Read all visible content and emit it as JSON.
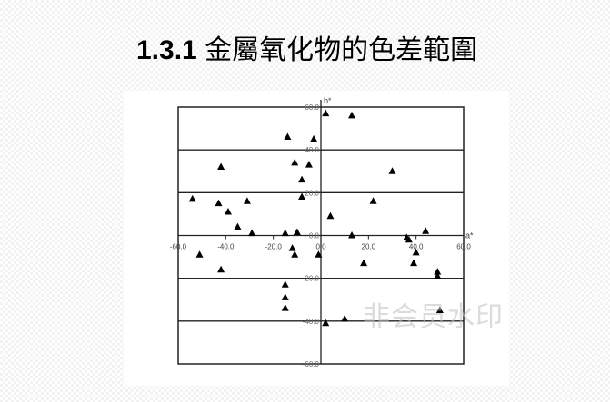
{
  "title": {
    "number": "1.3.1",
    "text": "金屬氧化物的色差範圍"
  },
  "watermark": "非会员水印",
  "chart_data": {
    "type": "scatter",
    "title": "",
    "xlabel": "a*",
    "ylabel": "b*",
    "xlim": [
      -60,
      60
    ],
    "ylim": [
      -60,
      60
    ],
    "x_ticks": [
      "-60.0",
      "-40.0",
      "-20.0",
      "0.0",
      "20.0",
      "40.0",
      "60.0"
    ],
    "y_ticks": [
      "60.0",
      "40.0",
      "20.0",
      "0.0",
      "-20.0",
      "-40.0",
      "-60.0"
    ],
    "grid": "horizontal",
    "marker": "triangle",
    "marker_color": "#000000",
    "points": [
      [
        2,
        57
      ],
      [
        13,
        56
      ],
      [
        -14,
        46
      ],
      [
        -3,
        45
      ],
      [
        -42,
        32
      ],
      [
        -11,
        34
      ],
      [
        -5,
        33
      ],
      [
        30,
        30
      ],
      [
        -8,
        26
      ],
      [
        -54,
        17
      ],
      [
        -43,
        15
      ],
      [
        -31,
        16
      ],
      [
        -8,
        18
      ],
      [
        22,
        16
      ],
      [
        -39,
        11
      ],
      [
        4,
        9
      ],
      [
        -35,
        4
      ],
      [
        -29,
        1
      ],
      [
        -15,
        1
      ],
      [
        -10,
        1.5
      ],
      [
        13,
        0
      ],
      [
        36,
        -1
      ],
      [
        37,
        -2
      ],
      [
        44,
        2
      ],
      [
        -51,
        -9
      ],
      [
        -12,
        -6
      ],
      [
        -11,
        -9
      ],
      [
        -1,
        -9
      ],
      [
        40,
        -8
      ],
      [
        18,
        -13
      ],
      [
        39,
        -13
      ],
      [
        -42,
        -16
      ],
      [
        49,
        -17
      ],
      [
        49,
        -19
      ],
      [
        -15,
        -23
      ],
      [
        -15,
        -29
      ],
      [
        -15,
        -34
      ],
      [
        50,
        -35
      ],
      [
        10,
        -39
      ],
      [
        2,
        -41
      ]
    ]
  }
}
